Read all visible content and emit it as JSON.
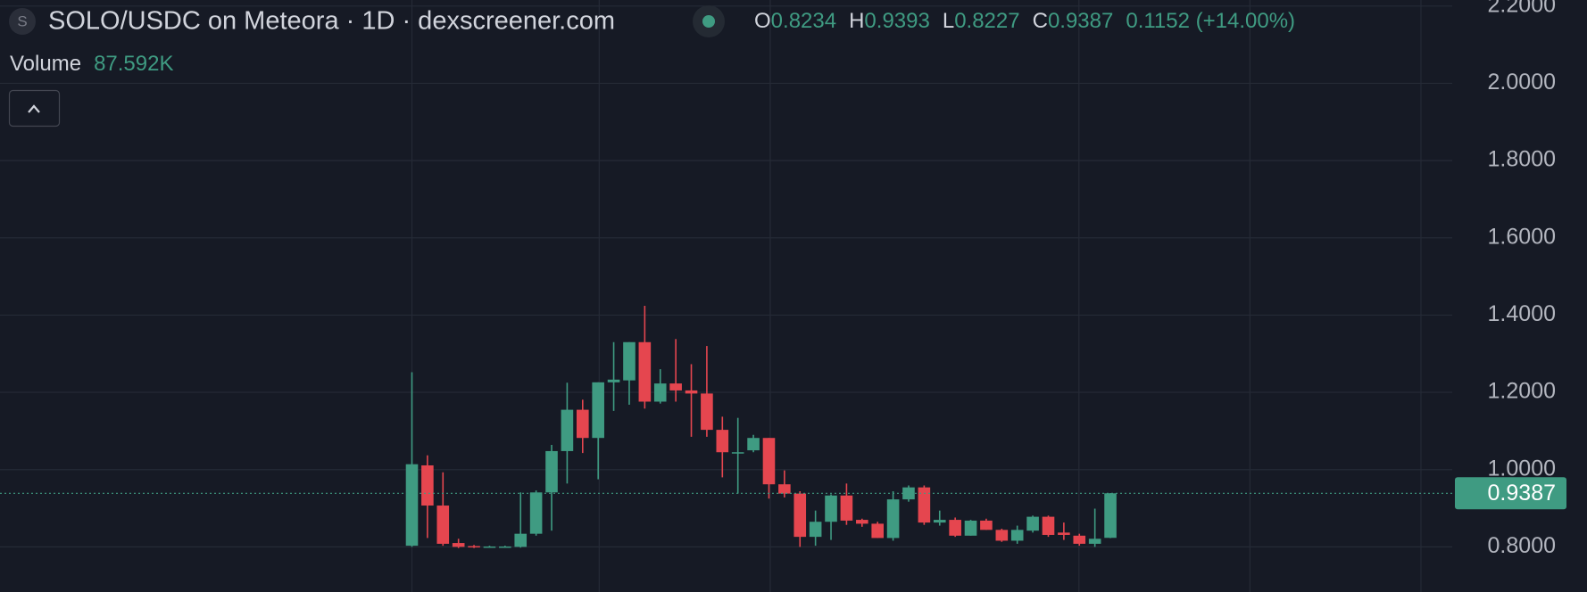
{
  "chart_data": {
    "type": "candlestick",
    "symbol_icon": "S",
    "title": "SOLO/USDC on Meteora · 1D · dexscreener.com",
    "ohlc_labels": {
      "open": "O",
      "high": "H",
      "low": "L",
      "close": "C"
    },
    "change": "0.1152 (+14.00%)",
    "volume_label": "Volume",
    "volume_value": "87.592K",
    "open": [
      0.803,
      1.011,
      0.907,
      0.81,
      0.802,
      0.8,
      0.8,
      0.8,
      0.834,
      0.941,
      1.048,
      1.155,
      1.082,
      1.226,
      1.231,
      1.33,
      1.176,
      1.223,
      1.205,
      1.197,
      1.103,
      1.043,
      1.05,
      1.082,
      0.962,
      0.938,
      0.826,
      0.865,
      0.933,
      0.87,
      0.86,
      0.823,
      0.923,
      0.954,
      0.863,
      0.87,
      0.829,
      0.868,
      0.844,
      0.816,
      0.842,
      0.878,
      0.837,
      0.829,
      0.808,
      0.8234
    ],
    "high": [
      1.252,
      1.037,
      0.993,
      0.821,
      0.805,
      0.803,
      0.803,
      0.941,
      0.946,
      1.064,
      1.225,
      1.181,
      1.226,
      1.33,
      1.33,
      1.424,
      1.26,
      1.338,
      1.273,
      1.32,
      1.137,
      1.134,
      1.09,
      1.082,
      0.998,
      0.944,
      0.894,
      0.936,
      0.964,
      0.873,
      0.865,
      0.944,
      0.959,
      0.959,
      0.894,
      0.876,
      0.87,
      0.873,
      0.847,
      0.855,
      0.881,
      0.881,
      0.863,
      0.834,
      0.899,
      0.9393
    ],
    "low": [
      0.8,
      0.823,
      0.803,
      0.797,
      0.797,
      0.798,
      0.798,
      0.798,
      0.829,
      0.842,
      0.964,
      1.043,
      0.975,
      1.152,
      1.168,
      1.158,
      1.171,
      1.176,
      1.085,
      1.085,
      0.98,
      0.938,
      1.045,
      0.925,
      0.928,
      0.8,
      0.803,
      0.818,
      0.857,
      0.852,
      0.823,
      0.816,
      0.917,
      0.857,
      0.855,
      0.826,
      0.829,
      0.844,
      0.813,
      0.808,
      0.837,
      0.826,
      0.818,
      0.803,
      0.8,
      0.8227
    ],
    "close": [
      1.014,
      0.907,
      0.808,
      0.8,
      0.799,
      0.801,
      0.801,
      0.834,
      0.941,
      1.048,
      1.155,
      1.082,
      1.226,
      1.233,
      1.33,
      1.176,
      1.223,
      1.205,
      1.197,
      1.103,
      1.045,
      1.045,
      1.082,
      0.962,
      0.938,
      0.826,
      0.865,
      0.933,
      0.868,
      0.86,
      0.823,
      0.923,
      0.954,
      0.863,
      0.87,
      0.829,
      0.868,
      0.844,
      0.816,
      0.844,
      0.878,
      0.831,
      0.831,
      0.808,
      0.821,
      0.9387
    ],
    "up_color": "#3f9b82",
    "down_color": "#e5464f",
    "ylim": [
      0.6832,
      2.2157
    ],
    "yticks": [
      {
        "value": 0.8,
        "label": "0.8000"
      },
      {
        "value": 1.0,
        "label": "1.0000"
      },
      {
        "value": 1.2,
        "label": "1.2000"
      },
      {
        "value": 1.4,
        "label": "1.4000"
      },
      {
        "value": 1.6,
        "label": "1.6000"
      },
      {
        "value": 1.8,
        "label": "1.8000"
      },
      {
        "value": 2.0,
        "label": "2.0000"
      },
      {
        "value": 2.2,
        "label": "2.2000"
      }
    ],
    "grid": true,
    "last_price_line": true
  }
}
